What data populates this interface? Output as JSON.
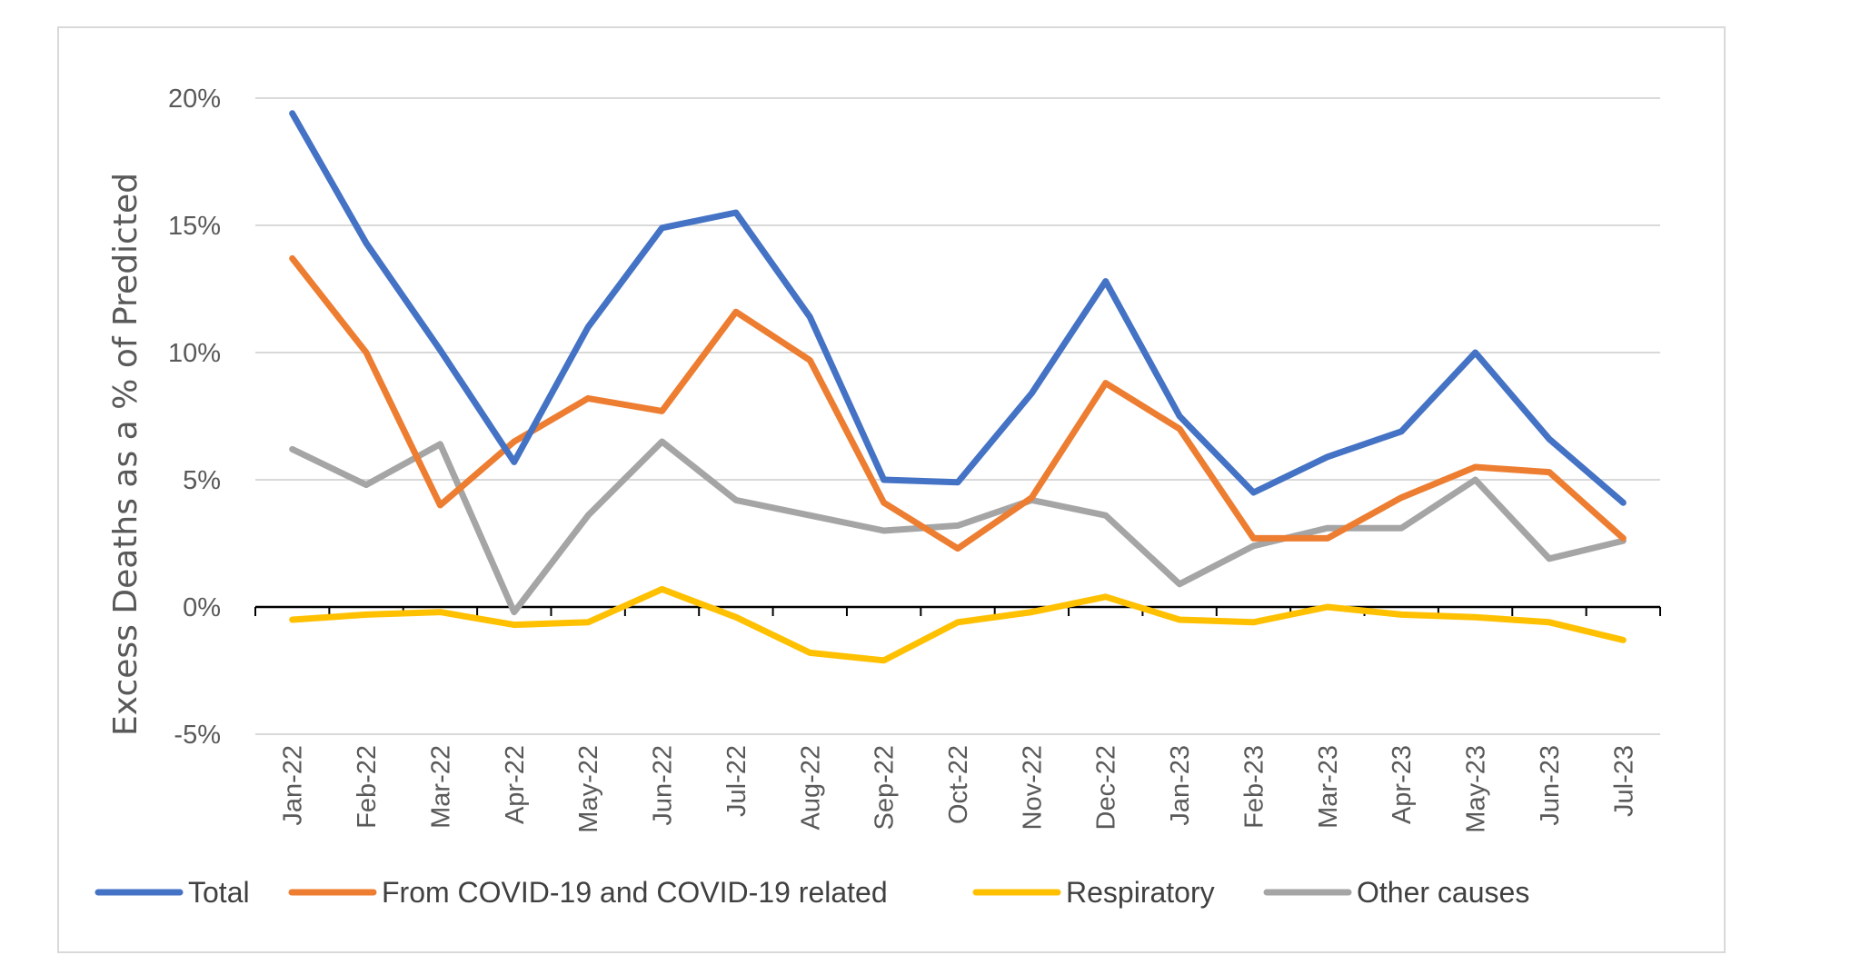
{
  "chart_data": {
    "type": "line",
    "title": "",
    "ylabel": "Excess Deaths as a % of Predicted",
    "xlabel": "",
    "ylim": [
      -5,
      20
    ],
    "yticks": [
      -5,
      0,
      5,
      10,
      15,
      20
    ],
    "ytick_labels": [
      "-5%",
      "0%",
      "5%",
      "10%",
      "15%",
      "20%"
    ],
    "grid": "horizontal",
    "legend": "bottom",
    "categories": [
      "Jan-22",
      "Feb-22",
      "Mar-22",
      "Apr-22",
      "May-22",
      "Jun-22",
      "Jul-22",
      "Aug-22",
      "Sep-22",
      "Oct-22",
      "Nov-22",
      "Dec-22",
      "Jan-23",
      "Feb-23",
      "Mar-23",
      "Apr-23",
      "May-23",
      "Jun-23",
      "Jul-23"
    ],
    "series": [
      {
        "name": "Total",
        "color": "#4472c4",
        "values": [
          19.4,
          14.3,
          10.1,
          5.7,
          11.0,
          14.9,
          15.5,
          11.4,
          5.0,
          4.9,
          8.4,
          12.8,
          7.5,
          4.5,
          5.9,
          6.9,
          10.0,
          6.6,
          4.1
        ]
      },
      {
        "name": "From COVID-19 and COVID-19 related",
        "color": "#ed7d31",
        "values": [
          13.7,
          10.0,
          4.0,
          6.5,
          8.2,
          7.7,
          11.6,
          9.7,
          4.1,
          2.3,
          4.3,
          8.8,
          7.0,
          2.7,
          2.7,
          4.3,
          5.5,
          5.3,
          2.7
        ]
      },
      {
        "name": "Respiratory",
        "color": "#ffc000",
        "values": [
          -0.5,
          -0.3,
          -0.2,
          -0.7,
          -0.6,
          0.7,
          -0.4,
          -1.8,
          -2.1,
          -0.6,
          -0.2,
          0.4,
          -0.5,
          -0.6,
          0.0,
          -0.3,
          -0.4,
          -0.6,
          -1.3
        ]
      },
      {
        "name": "Other causes",
        "color": "#a5a5a5",
        "values": [
          6.2,
          4.8,
          6.4,
          -0.2,
          3.6,
          6.5,
          4.2,
          3.6,
          3.0,
          3.2,
          4.2,
          3.6,
          0.9,
          2.4,
          3.1,
          3.1,
          5.0,
          1.9,
          2.6
        ]
      }
    ]
  }
}
